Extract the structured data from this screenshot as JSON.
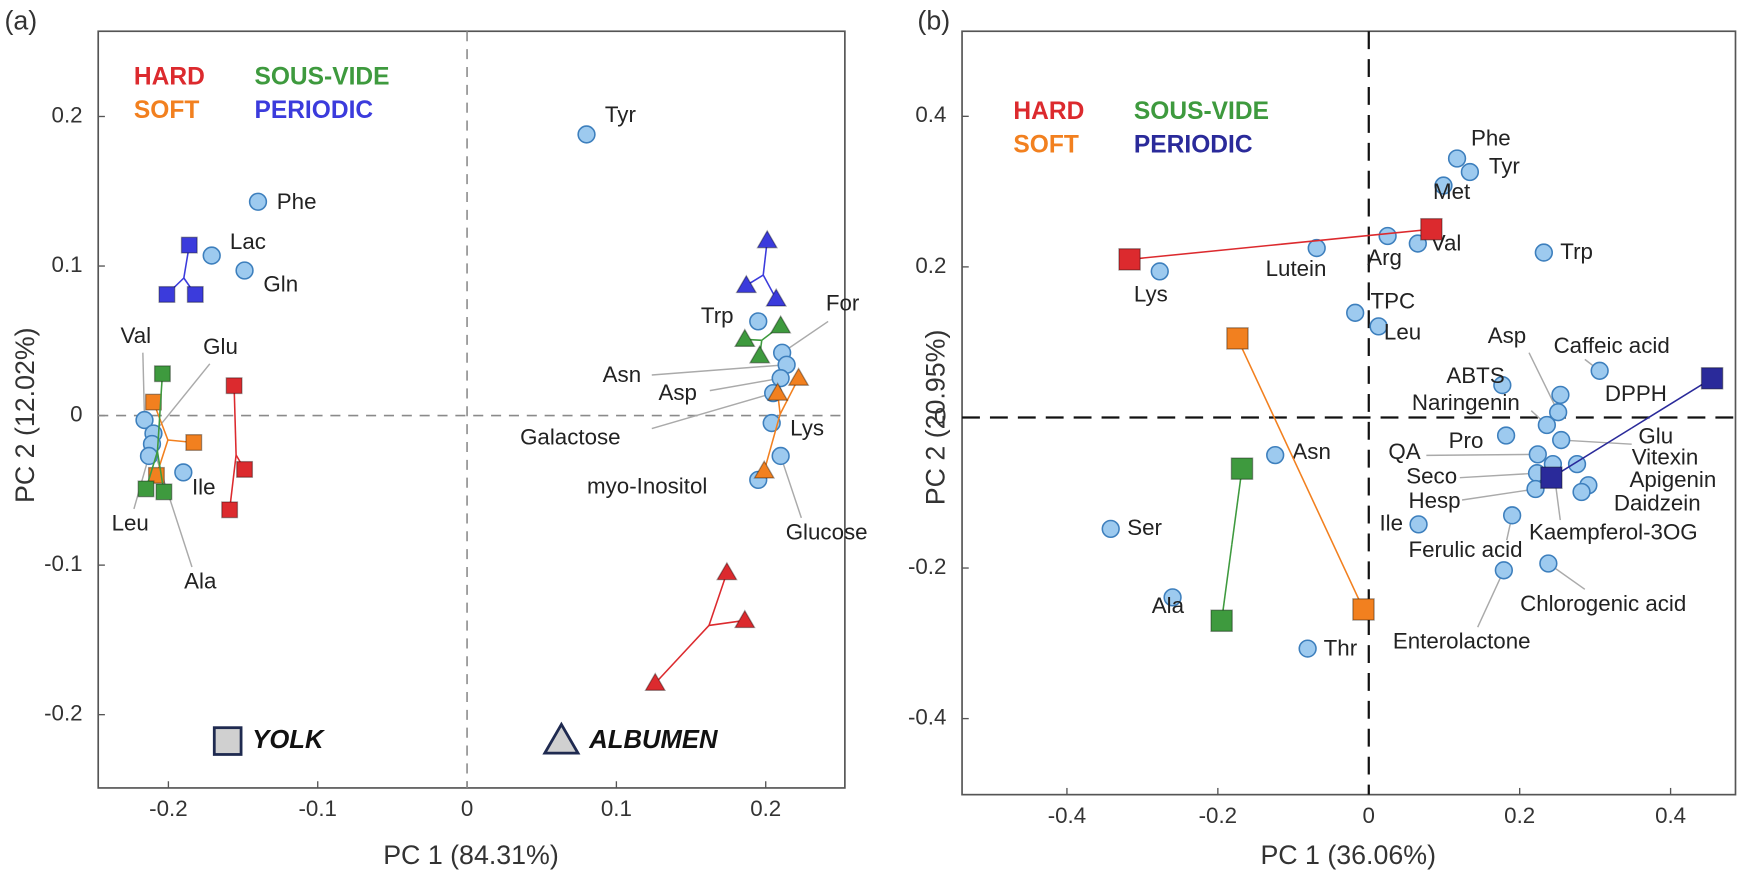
{
  "chart_data": [
    {
      "type": "scatter",
      "title": "(a)",
      "xlabel": "PC 1 (84.31%)",
      "ylabel": "PC 2 (12.02%)",
      "xlim": [
        -0.247,
        0.253
      ],
      "ylim": [
        -0.249,
        0.257
      ],
      "xticks": [
        -0.2,
        -0.1,
        0,
        0.1,
        0.2
      ],
      "yticks": [
        -0.2,
        -0.1,
        0,
        0.1,
        0.2
      ],
      "zero_lines": true,
      "points": {
        "color": "#9dcaef",
        "labels": [
          "Tyr",
          "Phe",
          "Lac",
          "Gln",
          "Val",
          "Glu",
          "Ala",
          "Leu",
          "Ile",
          "Trp",
          "For",
          "Asn",
          "Asp",
          "Galactose",
          "Lys",
          "Glucose",
          "myo-Inositol"
        ],
        "x": [
          0.08,
          -0.14,
          -0.171,
          -0.149,
          -0.216,
          -0.21,
          -0.211,
          -0.213,
          -0.19,
          0.195,
          0.211,
          0.214,
          0.21,
          0.205,
          0.204,
          0.21,
          0.195
        ],
        "values": [
          0.188,
          0.143,
          0.107,
          0.097,
          -0.003,
          -0.012,
          -0.019,
          -0.027,
          -0.038,
          0.063,
          0.042,
          0.034,
          0.025,
          0.015,
          -0.005,
          -0.027,
          -0.043
        ]
      },
      "markers": [
        {
          "label": "YOLK",
          "shape": "square"
        },
        {
          "label": "ALBUMEN",
          "shape": "triangle"
        }
      ],
      "series": [
        {
          "name": "HARD",
          "color": "#dc2a2e",
          "groups": [
            {
              "x": [
                -0.156,
                -0.149,
                -0.159
              ],
              "values": [
                0.02,
                -0.036,
                -0.063
              ]
            },
            {
              "x": [
                0.174,
                0.186,
                0.126
              ],
              "values": [
                -0.105,
                -0.137,
                -0.179
              ]
            }
          ]
        },
        {
          "name": "SOFT",
          "color": "#f2801f",
          "groups": [
            {
              "x": [
                -0.21,
                -0.183,
                -0.208
              ],
              "values": [
                0.009,
                -0.018,
                -0.04
              ]
            },
            {
              "x": [
                0.222,
                0.208,
                0.199
              ],
              "values": [
                0.025,
                0.015,
                -0.037
              ]
            }
          ]
        },
        {
          "name": "SOUS-VIDE",
          "color": "#3e9a3e",
          "groups": [
            {
              "x": [
                -0.204,
                -0.215,
                -0.203
              ],
              "values": [
                0.028,
                -0.049,
                -0.051
              ]
            },
            {
              "x": [
                0.21,
                0.186,
                0.196
              ],
              "values": [
                0.06,
                0.051,
                0.04
              ]
            }
          ]
        },
        {
          "name": "PERIODIC",
          "color": "#3b3bdc",
          "groups": [
            {
              "x": [
                -0.186,
                -0.201,
                -0.182
              ],
              "values": [
                0.114,
                0.081,
                0.081
              ]
            },
            {
              "x": [
                0.201,
                0.187,
                0.207
              ],
              "values": [
                0.117,
                0.087,
                0.078
              ]
            }
          ]
        }
      ]
    },
    {
      "type": "scatter",
      "title": "(b)",
      "xlabel": "PC 1 (36.06%)",
      "ylabel": "PC 2 (20.95%)",
      "xlim": [
        -0.539,
        0.486
      ],
      "ylim": [
        -0.501,
        0.513
      ],
      "xticks": [
        -0.4,
        -0.2,
        0,
        0.2,
        0.4
      ],
      "yticks": [
        -0.4,
        -0.2,
        0,
        0.2,
        0.4
      ],
      "zero_lines": true,
      "points": {
        "color": "#9dcaef",
        "labels": [
          "Phe",
          "Tyr",
          "Met",
          "Trp",
          "Val",
          "Arg",
          "Lutein",
          "Lys",
          "TPC",
          "Leu",
          "Asn",
          "Ser",
          "Ala",
          "Thr",
          "Caffeic acid",
          "ABTS",
          "DPPH",
          "Asp",
          "Naringenin",
          "Glu",
          "Pro",
          "QA",
          "Seco",
          "Hesp",
          "Vitexin",
          "Apigenin",
          "Daidzein",
          "Kaempferol-3OG",
          "Ile",
          "Ferulic acid",
          "Chlorogenic acid",
          "Enterolactone"
        ],
        "x": [
          0.117,
          0.134,
          0.099,
          0.232,
          0.065,
          0.025,
          -0.069,
          -0.277,
          -0.018,
          0.013,
          -0.124,
          -0.342,
          -0.26,
          -0.081,
          0.306,
          0.177,
          0.254,
          0.251,
          0.236,
          0.255,
          0.182,
          0.224,
          0.223,
          0.221,
          0.276,
          0.291,
          0.282,
          0.244,
          0.066,
          0.19,
          0.238,
          0.179
        ],
        "values": [
          0.344,
          0.326,
          0.308,
          0.219,
          0.231,
          0.241,
          0.225,
          0.194,
          0.139,
          0.121,
          -0.05,
          -0.148,
          -0.239,
          -0.307,
          0.062,
          0.043,
          0.03,
          0.007,
          -0.01,
          -0.03,
          -0.024,
          -0.049,
          -0.074,
          -0.095,
          -0.062,
          -0.09,
          -0.099,
          -0.062,
          -0.142,
          -0.13,
          -0.194,
          -0.203
        ]
      },
      "markers": [
        {
          "shape": "square"
        }
      ],
      "series": [
        {
          "name": "HARD",
          "color": "#dc2a2e",
          "groups": [
            {
              "x": [
                -0.317,
                0.083
              ],
              "values": [
                0.21,
                0.25
              ]
            }
          ]
        },
        {
          "name": "SOFT",
          "color": "#f2801f",
          "groups": [
            {
              "x": [
                -0.174,
                -0.007
              ],
              "values": [
                0.105,
                -0.255
              ]
            }
          ]
        },
        {
          "name": "SOUS-VIDE",
          "color": "#3e9a3e",
          "groups": [
            {
              "x": [
                -0.168,
                -0.195
              ],
              "values": [
                -0.068,
                -0.27
              ]
            }
          ]
        },
        {
          "name": "PERIODIC",
          "color": "#2a2a9a",
          "groups": [
            {
              "x": [
                0.242,
                0.455
              ],
              "values": [
                -0.08,
                0.052
              ]
            }
          ]
        }
      ]
    }
  ]
}
